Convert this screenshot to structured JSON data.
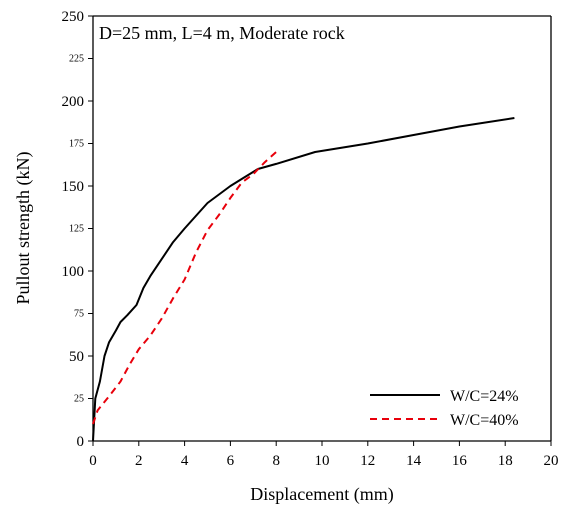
{
  "chart_data": {
    "type": "line",
    "annotation": "D=25 mm, L=4 m, Moderate rock",
    "xlabel": "Displacement (mm)",
    "ylabel": "Pullout strength (kN)",
    "xlim": [
      0,
      20
    ],
    "ylim": [
      0,
      250
    ],
    "x_ticks": [
      "0",
      "2",
      "4",
      "6",
      "8",
      "10",
      "12",
      "14",
      "16",
      "18",
      "20"
    ],
    "y_ticks": [
      "0",
      "25",
      "50",
      "75",
      "100",
      "125",
      "150",
      "175",
      "200",
      "225",
      "250"
    ],
    "grid": false,
    "legend_position": "bottom-right",
    "series": [
      {
        "name": "W/C=24%",
        "color": "#000000",
        "dash": "solid",
        "x": [
          0,
          0.1,
          0.3,
          0.5,
          0.7,
          1.0,
          1.2,
          1.5,
          1.9,
          2.2,
          2.5,
          3.0,
          3.5,
          4.0,
          5.0,
          6.0,
          6.6,
          7.2,
          8.0,
          9.7,
          12.0,
          14.0,
          16.0,
          18.4
        ],
        "y": [
          0,
          25,
          35,
          50,
          58,
          65,
          70,
          74,
          80,
          90,
          97,
          107,
          117,
          125,
          140,
          150,
          155,
          160,
          163,
          170,
          175,
          180,
          185,
          190
        ]
      },
      {
        "name": "W/C=40%",
        "color": "#e8000b",
        "dash": "dashed",
        "x": [
          0,
          0.2,
          0.5,
          0.8,
          1.2,
          1.6,
          2.0,
          2.5,
          3.0,
          3.5,
          4.0,
          4.5,
          5.0,
          5.5,
          6.0,
          6.5,
          7.0,
          7.5,
          8.0
        ],
        "y": [
          10,
          18,
          23,
          28,
          35,
          45,
          54,
          62,
          72,
          84,
          95,
          111,
          124,
          133,
          143,
          152,
          157,
          164,
          170
        ]
      }
    ]
  }
}
